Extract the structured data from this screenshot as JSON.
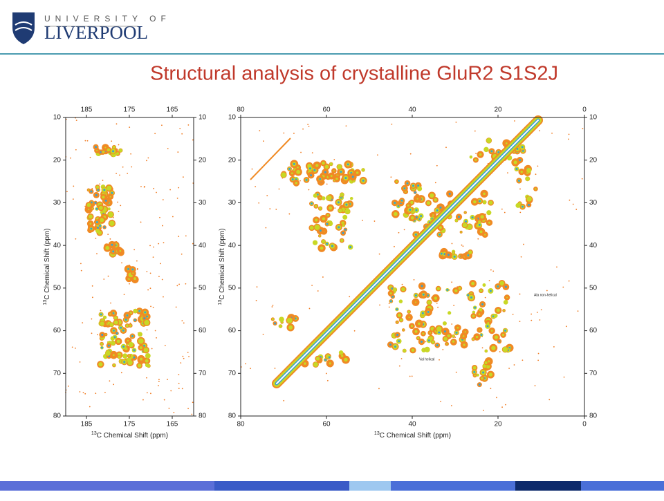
{
  "header": {
    "logo_top": "UNIVERSITY OF",
    "logo_main": "LIVERPOOL"
  },
  "title": "Structural analysis of crystalline GluR2 S1S2J",
  "panels": [
    {
      "x_ticks": [
        "185",
        "175",
        "165"
      ],
      "y_ticks": [
        "10",
        "20",
        "30",
        "40",
        "50",
        "60",
        "70",
        "80"
      ],
      "x_label": {
        "sup": "13",
        "text": "C Chemical Shift (ppm)"
      },
      "y_label": {
        "sup": "13",
        "text": "C Chemical Shift (ppm)"
      }
    },
    {
      "x_ticks": [
        "80",
        "60",
        "40",
        "20",
        "0"
      ],
      "y_ticks": [
        "10",
        "20",
        "30",
        "40",
        "50",
        "60",
        "70",
        "80"
      ],
      "x_label": {
        "sup": "13",
        "text": "C Chemical Shift (ppm)"
      },
      "y_label": {
        "sup": "13",
        "text": "C Chemical Shift (ppm)"
      },
      "annotations": [
        "Ala non-helical",
        "Val helical"
      ]
    }
  ]
}
